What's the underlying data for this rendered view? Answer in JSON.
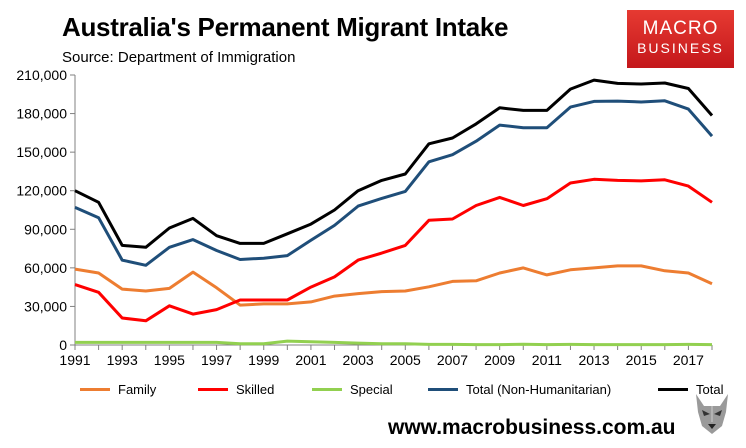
{
  "header": {
    "title": "Australia's Permanent Migrant Intake",
    "subtitle": "Source: Department of Immigration"
  },
  "logo": {
    "line1": "MACRO",
    "line2": "BUSINESS"
  },
  "footer": {
    "url": "www.macrobusiness.com.au"
  },
  "chart_data": {
    "type": "line",
    "title": "Australia's Permanent Migrant Intake",
    "subtitle": "Source: Department of Immigration",
    "x": [
      1991,
      1992,
      1993,
      1994,
      1995,
      1996,
      1997,
      1998,
      1999,
      2000,
      2001,
      2002,
      2003,
      2004,
      2005,
      2006,
      2007,
      2008,
      2009,
      2010,
      2011,
      2012,
      2013,
      2014,
      2015,
      2016,
      2017,
      2018
    ],
    "xlim": [
      1991,
      2018
    ],
    "xticks": [
      1991,
      1993,
      1995,
      1997,
      1999,
      2001,
      2003,
      2005,
      2007,
      2009,
      2011,
      2013,
      2015,
      2017
    ],
    "ylim": [
      0,
      210000
    ],
    "yticks": [
      0,
      30000,
      60000,
      90000,
      120000,
      150000,
      180000,
      210000
    ],
    "ytick_labels": [
      "0",
      "30,000",
      "60,000",
      "90,000",
      "120,000",
      "150,000",
      "180,000",
      "210,000"
    ],
    "grid": false,
    "legend": "bottom",
    "series": [
      {
        "name": "Family",
        "color": "#ed7d31",
        "values": [
          59000,
          56000,
          43500,
          42000,
          44000,
          56700,
          44500,
          31000,
          32000,
          32000,
          33500,
          38000,
          40000,
          41500,
          42000,
          45300,
          49500,
          49900,
          56000,
          60000,
          54500,
          58500,
          60000,
          61500,
          61500,
          57700,
          56000,
          47700
        ]
      },
      {
        "name": "Skilled",
        "color": "#ff0000",
        "values": [
          47000,
          41000,
          21000,
          18800,
          30500,
          24000,
          27500,
          35000,
          35000,
          35000,
          45000,
          53000,
          66000,
          71500,
          77500,
          97000,
          98000,
          108500,
          114800,
          108500,
          113800,
          126000,
          128900,
          128000,
          127600,
          128500,
          123600,
          111000
        ]
      },
      {
        "name": "Special",
        "color": "#92d050",
        "values": [
          2000,
          2000,
          2000,
          2000,
          2000,
          2000,
          2000,
          1000,
          1000,
          3000,
          2500,
          2000,
          1500,
          1000,
          1000,
          500,
          500,
          300,
          300,
          600,
          300,
          500,
          300,
          300,
          300,
          300,
          500,
          300
        ]
      },
      {
        "name": "Total (Non-Humanitarian)",
        "color": "#1f4e79",
        "values": [
          107000,
          99000,
          66000,
          62000,
          76000,
          82000,
          73500,
          66500,
          67500,
          69500,
          81500,
          93000,
          108000,
          114000,
          119500,
          142500,
          148000,
          158500,
          171000,
          169000,
          169000,
          185000,
          189500,
          189700,
          189000,
          189900,
          183500,
          162500
        ]
      },
      {
        "name": "Total",
        "color": "#000000",
        "values": [
          120000,
          111000,
          77500,
          76000,
          91000,
          98500,
          85000,
          79000,
          79000,
          86500,
          94000,
          105000,
          120000,
          128000,
          133000,
          156500,
          161000,
          172000,
          184500,
          182500,
          182500,
          199000,
          206000,
          203500,
          203000,
          203800,
          199500,
          178500
        ]
      }
    ]
  }
}
